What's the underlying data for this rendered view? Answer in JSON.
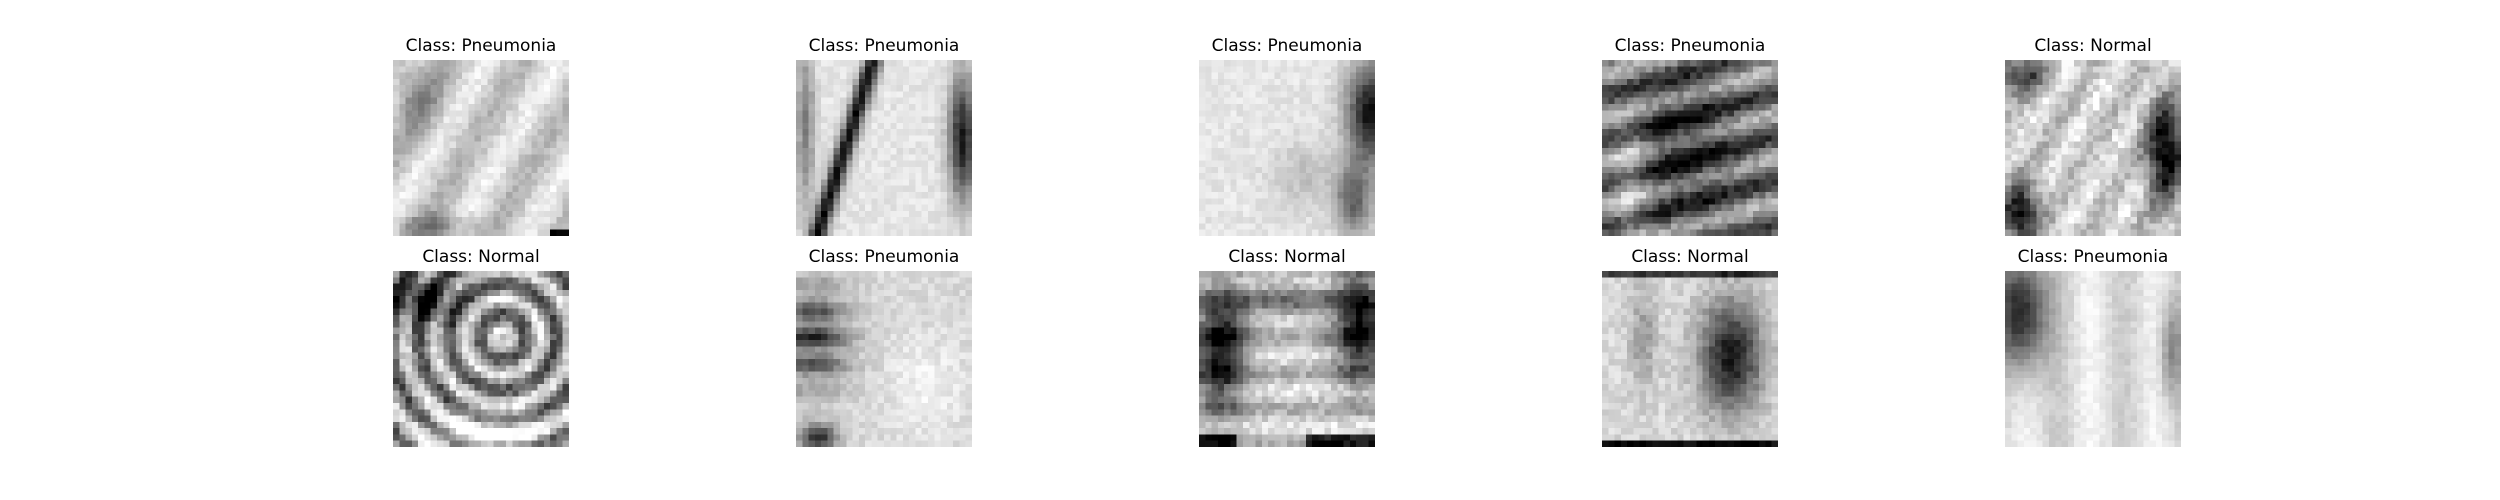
{
  "figure": {
    "rows": 2,
    "cols": 5,
    "title_prefix": "Class: ",
    "samples": [
      {
        "label": "Class: Pneumonia",
        "class": "Pneumonia",
        "texture": "hazy-diagonal"
      },
      {
        "label": "Class: Pneumonia",
        "class": "Pneumonia",
        "texture": "dark-diagonal-stripe"
      },
      {
        "label": "Class: Pneumonia",
        "class": "Pneumonia",
        "texture": "bright-right-dark"
      },
      {
        "label": "Class: Pneumonia",
        "class": "Pneumonia",
        "texture": "dark-ribs"
      },
      {
        "label": "Class: Normal",
        "class": "Normal",
        "texture": "chest-dark-right"
      },
      {
        "label": "Class: Normal",
        "class": "Normal",
        "texture": "dark-ring"
      },
      {
        "label": "Class: Pneumonia",
        "class": "Pneumonia",
        "texture": "dark-left-streaks"
      },
      {
        "label": "Class: Normal",
        "class": "Normal",
        "texture": "lungs-dark-corners"
      },
      {
        "label": "Class: Normal",
        "class": "Normal",
        "texture": "dark-right-blob"
      },
      {
        "label": "Class: Pneumonia",
        "class": "Pneumonia",
        "texture": "dark-left-blob"
      }
    ]
  },
  "colors": {
    "background": "#ffffff",
    "text": "#000000",
    "colormap": "gray"
  }
}
